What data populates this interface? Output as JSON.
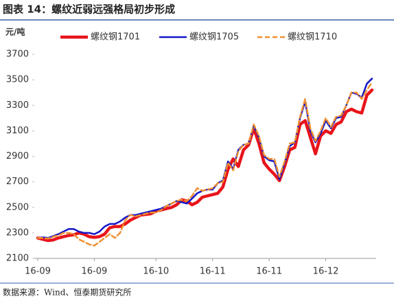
{
  "chart_data": {
    "type": "line",
    "title": "图表 14：螺纹近弱远强格局初步形成",
    "y_label": "元/吨",
    "source": "数据来源：Wind、恒泰期货研究所",
    "categories": [
      "16-09",
      null,
      null,
      null,
      null,
      null,
      null,
      null,
      null,
      null,
      null,
      "16-09",
      null,
      null,
      null,
      null,
      null,
      null,
      null,
      null,
      null,
      null,
      null,
      "16-10",
      null,
      null,
      null,
      null,
      null,
      null,
      null,
      null,
      null,
      null,
      "16-11",
      null,
      null,
      null,
      null,
      null,
      null,
      null,
      null,
      null,
      null,
      "16-11",
      null,
      null,
      null,
      null,
      null,
      null,
      null,
      null,
      null,
      null,
      "16-12",
      null,
      null,
      null,
      null,
      null,
      null,
      null,
      null,
      null
    ],
    "series": [
      {
        "name": "螺纹钢1701",
        "color": "#e8141b",
        "dashed": false,
        "width": 4.5,
        "values": [
          2260,
          2250,
          2240,
          2245,
          2260,
          2270,
          2280,
          2285,
          2300,
          2290,
          2270,
          2265,
          2270,
          2290,
          2340,
          2350,
          2350,
          2370,
          2400,
          2420,
          2440,
          2445,
          2450,
          2470,
          2480,
          2490,
          2500,
          2520,
          2560,
          2550,
          2520,
          2540,
          2580,
          2590,
          2600,
          2610,
          2660,
          2800,
          2880,
          2820,
          2950,
          2990,
          3120,
          3000,
          2850,
          2800,
          2760,
          2710,
          2820,
          2950,
          2970,
          3150,
          3180,
          3050,
          2920,
          3060,
          3100,
          3080,
          3150,
          3170,
          3250,
          3270,
          3250,
          3240,
          3380,
          3420
        ]
      },
      {
        "name": "螺纹钢1705",
        "color": "#1515c8",
        "dashed": false,
        "width": 2.5,
        "values": [
          2260,
          2265,
          2260,
          2275,
          2290,
          2310,
          2330,
          2330,
          2310,
          2300,
          2300,
          2290,
          2310,
          2350,
          2370,
          2370,
          2390,
          2420,
          2440,
          2440,
          2450,
          2460,
          2470,
          2480,
          2490,
          2510,
          2530,
          2550,
          2540,
          2530,
          2570,
          2610,
          2630,
          2640,
          2640,
          2690,
          2710,
          2860,
          2800,
          2950,
          2990,
          3000,
          3140,
          3050,
          2900,
          2870,
          2860,
          2720,
          2850,
          2980,
          3010,
          3200,
          3330,
          3100,
          3010,
          3080,
          3180,
          3120,
          3200,
          3210,
          3300,
          3400,
          3390,
          3360,
          3470,
          3510
        ]
      },
      {
        "name": "螺纹钢1710",
        "color": "#f09030",
        "dashed": true,
        "width": 2.5,
        "values": [
          2260,
          2260,
          2255,
          2270,
          2280,
          2300,
          2300,
          2290,
          2250,
          2230,
          2210,
          2200,
          2230,
          2260,
          2290,
          2260,
          2300,
          2400,
          2440,
          2430,
          2440,
          2450,
          2460,
          2460,
          2480,
          2510,
          2530,
          2550,
          2560,
          2550,
          2590,
          2650,
          2630,
          2640,
          2650,
          2690,
          2700,
          2850,
          2790,
          2940,
          2990,
          3000,
          3150,
          3060,
          2910,
          2880,
          2880,
          2740,
          2860,
          3000,
          3010,
          3210,
          3350,
          3120,
          3020,
          3100,
          3200,
          3130,
          3210,
          3220,
          3300,
          3400,
          3400,
          3350,
          3420,
          3480
        ]
      }
    ],
    "ylim": [
      2100,
      3700
    ],
    "yticks": [
      2100,
      2300,
      2500,
      2700,
      2900,
      3100,
      3300,
      3500,
      3700
    ],
    "grid": false,
    "legend": "top"
  }
}
